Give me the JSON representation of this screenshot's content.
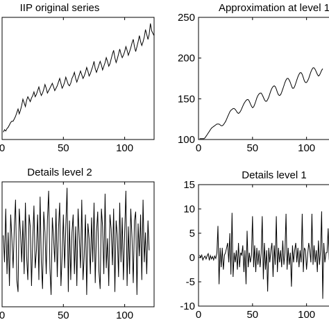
{
  "chart_data": [
    {
      "type": "line",
      "title": "IIP original series",
      "xlim": [
        0,
        124
      ],
      "x_ticks": [
        0,
        50,
        100
      ],
      "x_tick_labels": [
        "0",
        "50",
        "100"
      ],
      "y_ticks": [],
      "y_tick_labels": [],
      "grid": false,
      "series": [
        {
          "color": "#000000",
          "values": [
            0.06,
            0.08,
            0.07,
            0.09,
            0.1,
            0.12,
            0.14,
            0.15,
            0.15,
            0.17,
            0.19,
            0.22,
            0.25,
            0.21,
            0.24,
            0.28,
            0.33,
            0.3,
            0.27,
            0.32,
            0.35,
            0.33,
            0.31,
            0.34,
            0.36,
            0.39,
            0.35,
            0.37,
            0.4,
            0.43,
            0.39,
            0.36,
            0.38,
            0.41,
            0.45,
            0.42,
            0.38,
            0.4,
            0.42,
            0.44,
            0.46,
            0.43,
            0.4,
            0.42,
            0.44,
            0.47,
            0.5,
            0.46,
            0.42,
            0.44,
            0.47,
            0.51,
            0.48,
            0.45,
            0.44,
            0.46,
            0.5,
            0.52,
            0.55,
            0.5,
            0.47,
            0.5,
            0.53,
            0.56,
            0.53,
            0.5,
            0.52,
            0.55,
            0.59,
            0.56,
            0.52,
            0.54,
            0.57,
            0.6,
            0.64,
            0.58,
            0.55,
            0.58,
            0.61,
            0.64,
            0.61,
            0.57,
            0.6,
            0.63,
            0.67,
            0.64,
            0.6,
            0.62,
            0.66,
            0.7,
            0.73,
            0.67,
            0.63,
            0.66,
            0.7,
            0.74,
            0.7,
            0.67,
            0.69,
            0.72,
            0.76,
            0.73,
            0.69,
            0.72,
            0.75,
            0.79,
            0.82,
            0.76,
            0.72,
            0.76,
            0.8,
            0.85,
            0.8,
            0.77,
            0.8,
            0.84,
            0.9,
            0.86,
            0.82,
            0.86,
            0.95,
            0.89,
            0.87,
            0.85
          ]
        }
      ]
    },
    {
      "type": "line",
      "title": "Approximation at level 1",
      "xlim": [
        0,
        124
      ],
      "ylim": [
        100,
        250
      ],
      "x_ticks": [
        0,
        50,
        100
      ],
      "x_tick_labels": [
        "0",
        "50",
        "100"
      ],
      "y_ticks": [
        100,
        150,
        200,
        250
      ],
      "y_tick_labels": [
        "100",
        "150",
        "200",
        "250"
      ],
      "grid": false,
      "series": [
        {
          "color": "#000000",
          "values": [
            101,
            101,
            101,
            101,
            101,
            102,
            104,
            106,
            108,
            110,
            112,
            114,
            115,
            116,
            117,
            118,
            119,
            119,
            119,
            118,
            117,
            117,
            118,
            120,
            122,
            125,
            128,
            131,
            134,
            136,
            137,
            138,
            138,
            137,
            135,
            133,
            132,
            133,
            135,
            138,
            141,
            144,
            146,
            148,
            149,
            149,
            147,
            144,
            141,
            139,
            140,
            143,
            147,
            151,
            154,
            156,
            157,
            157,
            155,
            152,
            149,
            147,
            147,
            149,
            152,
            156,
            160,
            163,
            165,
            166,
            165,
            162,
            158,
            155,
            154,
            155,
            158,
            162,
            166,
            170,
            173,
            175,
            175,
            173,
            170,
            166,
            163,
            163,
            165,
            169,
            173,
            177,
            180,
            182,
            182,
            180,
            176,
            172,
            170,
            170,
            172,
            175,
            179,
            183,
            186,
            188,
            188,
            186,
            183,
            180,
            178,
            179,
            182,
            185,
            187
          ]
        }
      ]
    },
    {
      "type": "line",
      "title": "Details level 2",
      "xlim": [
        0,
        124
      ],
      "x_ticks": [
        0,
        50,
        100
      ],
      "x_tick_labels": [
        "0",
        "50",
        "100"
      ],
      "y_ticks": [],
      "y_tick_labels": [],
      "grid": false,
      "series": [
        {
          "color": "#000000",
          "values": [
            0.15,
            -0.3,
            0.6,
            -0.5,
            0.2,
            -0.7,
            0.5,
            0.1,
            -0.4,
            0.3,
            0.75,
            -0.6,
            -0.8,
            0.6,
            0.2,
            -0.3,
            0.4,
            -0.5,
            0.7,
            -0.2,
            -0.6,
            0.5,
            0.3,
            -0.7,
            0.1,
            0.65,
            -0.4,
            -0.1,
            0.5,
            -0.6,
            0.8,
            -0.3,
            -0.75,
            0.55,
            0.2,
            -0.5,
            0.4,
            0.9,
            -0.4,
            -0.85,
            0.45,
            0.1,
            -0.3,
            0.6,
            -0.55,
            0.25,
            0.7,
            -0.7,
            -0.2,
            0.5,
            -0.4,
            0.3,
            0.95,
            -0.8,
            0.4,
            -0.6,
            0.2,
            0.5,
            -0.5,
            0.3,
            -0.7,
            0.6,
            0.1,
            -0.4,
            0.75,
            -0.6,
            -0.2,
            0.5,
            -0.85,
            0.35,
            0.1,
            -0.5,
            0.45,
            -0.3,
            0.7,
            -0.65,
            0.2,
            0.55,
            -0.45,
            -0.75,
            0.6,
            0.3,
            -0.5,
            0.85,
            -0.4,
            0.1,
            -0.7,
            0.5,
            0.25,
            -0.35,
            0.6,
            -0.8,
            0.4,
            0.15,
            -0.55,
            0.7,
            -0.3,
            0.45,
            -0.6,
            0.2,
            0.9,
            -0.7,
            0.3,
            -0.5,
            0.6,
            0.1,
            -0.65,
            0.4,
            0.55,
            -0.85,
            0.35,
            -0.2,
            0.5,
            -0.6,
            0.75,
            -0.3,
            0.2,
            -0.5,
            0.4,
            -0.1
          ]
        }
      ]
    },
    {
      "type": "line",
      "title": "Details level 1",
      "xlim": [
        0,
        124
      ],
      "ylim": [
        -10,
        15
      ],
      "x_ticks": [
        0,
        50,
        100
      ],
      "x_tick_labels": [
        "0",
        "50",
        "100"
      ],
      "y_ticks": [
        -10,
        -5,
        0,
        5,
        10,
        15
      ],
      "y_tick_labels": [
        "-10",
        "-5",
        "0",
        "5",
        "10",
        "15"
      ],
      "grid": false,
      "series": [
        {
          "color": "#000000",
          "values": [
            0.5,
            0,
            0.5,
            -0.5,
            0,
            0.3,
            -0.3,
            0.4,
            0.8,
            -0.6,
            0.4,
            -0.3,
            0.2,
            -0.5,
            0.3,
            -0.2,
            1,
            6.5,
            -5.5,
            2,
            -2,
            2,
            -2.5,
            0.5,
            1,
            2,
            3,
            -1,
            5,
            -3.5,
            9.2,
            -4,
            1,
            -1,
            1.5,
            -2.5,
            3,
            -2,
            1,
            0.5,
            2.5,
            -3,
            1.5,
            -5.5,
            5.5,
            -2,
            1,
            -1,
            0.5,
            8.5,
            -2,
            2.5,
            -3,
            2,
            -1.5,
            1.5,
            -2,
            1,
            8.5,
            -4.5,
            3,
            -2.5,
            1.5,
            -7,
            2,
            -1,
            1.5,
            3,
            -4,
            2.5,
            -1.5,
            8.5,
            -3,
            2,
            -1,
            1.5,
            -2,
            3.5,
            -1.5,
            1,
            9,
            -2.5,
            2,
            -1.5,
            1,
            -6,
            2.5,
            -1,
            1.5,
            3,
            -1,
            2,
            -2,
            1.5,
            -1,
            9,
            -3,
            2,
            1.5,
            -2.5,
            0.5,
            3,
            1.5,
            -1,
            9,
            -1.5,
            2.5,
            -1,
            1.5,
            -3,
            3.5,
            -1.5,
            1.5,
            9.5,
            -8.5,
            3,
            -1,
            1,
            1,
            6,
            -0.5
          ]
        }
      ]
    }
  ]
}
